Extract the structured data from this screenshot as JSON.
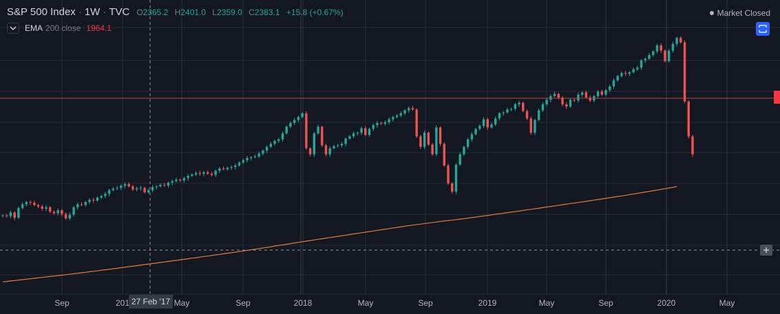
{
  "header": {
    "symbol": "S&P 500 Index",
    "interval": "1W",
    "exchange": "TVC",
    "open_label": "O",
    "open": "2365.2",
    "high_label": "H",
    "high": "2401.0",
    "low_label": "L",
    "low": "2359.0",
    "close_label": "C",
    "close": "2383.1",
    "change": "+15.8 (+0.67%)"
  },
  "indicator": {
    "name": "EMA",
    "params": "200 close",
    "value": "1964.1"
  },
  "market_status": "Market Closed",
  "crosshair_date": "27 Feb '17",
  "colors": {
    "background": "#131722",
    "up": "#26a69a",
    "down": "#ef5350",
    "ema": "#e07a3a",
    "grid": "#2a2e39"
  },
  "chart_data": {
    "type": "candlestick",
    "x_axis_labels": [
      "Sep",
      "201",
      "May",
      "Sep",
      "2018",
      "May",
      "Sep",
      "2019",
      "May",
      "Sep",
      "2020",
      "May"
    ],
    "grid": true,
    "weekly_close_series": [
      2190,
      2185,
      2210,
      2175,
      2240,
      2265,
      2280,
      2275,
      2260,
      2250,
      2235,
      2245,
      2215,
      2205,
      2225,
      2200,
      2170,
      2195,
      2245,
      2265,
      2260,
      2280,
      2295,
      2290,
      2310,
      2320,
      2335,
      2360,
      2370,
      2375,
      2390,
      2400,
      2385,
      2365,
      2372,
      2375,
      2345,
      2360,
      2380,
      2385,
      2395,
      2390,
      2410,
      2420,
      2430,
      2425,
      2440,
      2455,
      2465,
      2475,
      2470,
      2480,
      2470,
      2462,
      2490,
      2505,
      2500,
      2510,
      2515,
      2525,
      2545,
      2560,
      2575,
      2580,
      2585,
      2605,
      2625,
      2650,
      2670,
      2690,
      2700,
      2740,
      2785,
      2810,
      2830,
      2850,
      2874,
      2640,
      2600,
      2740,
      2785,
      2660,
      2600,
      2640,
      2655,
      2660,
      2670,
      2705,
      2720,
      2740,
      2745,
      2775,
      2730,
      2770,
      2795,
      2810,
      2805,
      2815,
      2835,
      2850,
      2860,
      2875,
      2895,
      2910,
      2900,
      2720,
      2650,
      2745,
      2665,
      2600,
      2780,
      2670,
      2525,
      2405,
      2350,
      2530,
      2600,
      2650,
      2700,
      2735,
      2770,
      2790,
      2835,
      2780,
      2800,
      2840,
      2875,
      2880,
      2900,
      2905,
      2935,
      2945,
      2890,
      2840,
      2745,
      2830,
      2895,
      2935,
      2965,
      2990,
      3005,
      2980,
      2935,
      2920,
      2965,
      2960,
      3000,
      3015,
      2980,
      2960,
      2990,
      3020,
      3000,
      3030,
      3055,
      3095,
      3125,
      3145,
      3140,
      3150,
      3170,
      3180,
      3230,
      3240,
      3265,
      3290,
      3330,
      3295,
      3225,
      3295,
      3340,
      3380,
      3350,
      2954,
      2720,
      2600
    ],
    "ema_200_close": [
      1745,
      1748,
      1751,
      1754,
      1757,
      1760,
      1763,
      1766,
      1769,
      1772,
      1775,
      1778,
      1781,
      1784,
      1787,
      1790,
      1793,
      1796,
      1800,
      1803,
      1806,
      1809,
      1813,
      1816,
      1819,
      1823,
      1826,
      1829,
      1833,
      1836,
      1840,
      1843,
      1847,
      1850,
      1854,
      1857,
      1861,
      1864,
      1868,
      1871,
      1875,
      1878,
      1882,
      1886,
      1889,
      1893,
      1896,
      1900,
      1904,
      1907,
      1911,
      1915,
      1918,
      1922,
      1926,
      1929,
      1933,
      1937,
      1940,
      1944,
      1948,
      1952,
      1956,
      1960,
      1964,
      1968,
      1972,
      1976,
      1980,
      1985,
      1989,
      1993,
      1997,
      2001,
      2006,
      2010,
      2014,
      2018,
      2022,
      2026,
      2030,
      2034,
      2038,
      2042,
      2046,
      2050,
      2054,
      2058,
      2062,
      2066,
      2070,
      2074,
      2078,
      2082,
      2086,
      2090,
      2094,
      2098,
      2102,
      2106,
      2110,
      2114,
      2118,
      2122,
      2125,
      2129,
      2132,
      2136,
      2139,
      2143,
      2146,
      2150,
      2153,
      2156,
      2159,
      2162,
      2165,
      2169,
      2172,
      2176,
      2179,
      2183,
      2187,
      2190,
      2194,
      2198,
      2201,
      2205,
      2209,
      2213,
      2216,
      2220,
      2224,
      2228,
      2231,
      2235,
      2239,
      2243,
      2247,
      2250,
      2254,
      2258,
      2262,
      2266,
      2270,
      2273,
      2277,
      2281,
      2285,
      2289,
      2293,
      2297,
      2301,
      2305,
      2309,
      2313,
      2317,
      2321,
      2325,
      2330,
      2334,
      2338,
      2343,
      2347,
      2351,
      2356,
      2360,
      2365,
      2369,
      2374,
      2379,
      2384
    ],
    "ylim": [
      1700,
      3450
    ]
  }
}
